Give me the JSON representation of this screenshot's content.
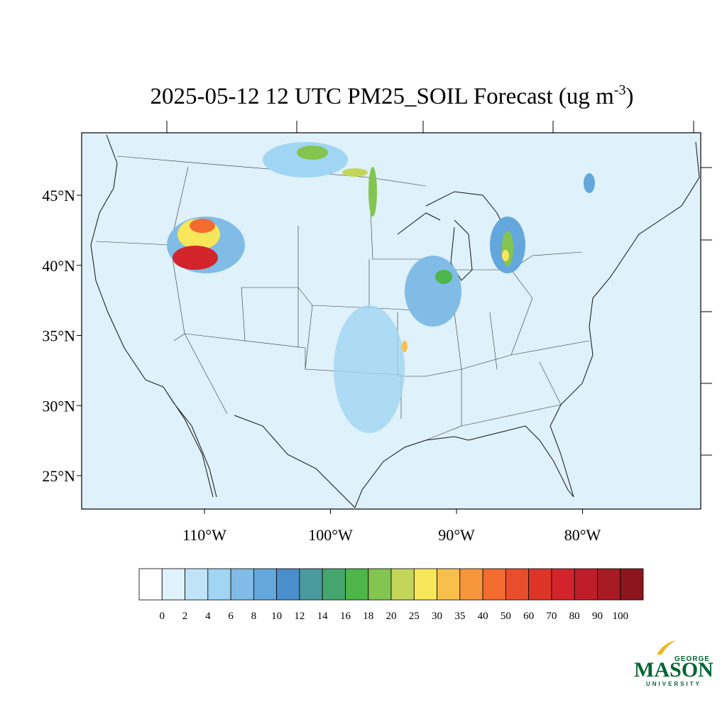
{
  "map": {
    "title": {
      "main": "2025-05-12 12 UTC PM25_SOIL Forecast (ug m",
      "superscript": "-3",
      "end": ")"
    },
    "lat_ticks": [
      {
        "value": 45,
        "label": "45°N"
      },
      {
        "value": 40,
        "label": "40°N"
      },
      {
        "value": 35,
        "label": "35°N"
      },
      {
        "value": 30,
        "label": "30°N"
      },
      {
        "value": 25,
        "label": "25°N"
      }
    ],
    "lon_ticks": [
      {
        "value": -110,
        "label": "110°W"
      },
      {
        "value": -100,
        "label": "100°W"
      },
      {
        "value": -90,
        "label": "90°W"
      },
      {
        "value": -80,
        "label": "80°W"
      }
    ],
    "colorbar": {
      "levels": [
        0,
        2,
        4,
        6,
        8,
        10,
        12,
        14,
        16,
        18,
        20,
        25,
        30,
        35,
        40,
        50,
        60,
        70,
        80,
        90,
        100
      ],
      "colors": [
        "#ffffff",
        "#dff1fa",
        "#c0e4f7",
        "#a0d6f3",
        "#80bce6",
        "#64a7dc",
        "#4a8ecb",
        "#4a9a9e",
        "#46a66e",
        "#4db54a",
        "#84c451",
        "#c3d65a",
        "#f7e65a",
        "#f8bf4c",
        "#f7953d",
        "#f26b2f",
        "#e84d2c",
        "#dc3528",
        "#d2242a",
        "#bd1e2a",
        "#a81b24",
        "#8c161c"
      ]
    },
    "logo": {
      "top": "GEORGE",
      "main": "MASON",
      "bottom": "UNIVERSITY"
    }
  }
}
